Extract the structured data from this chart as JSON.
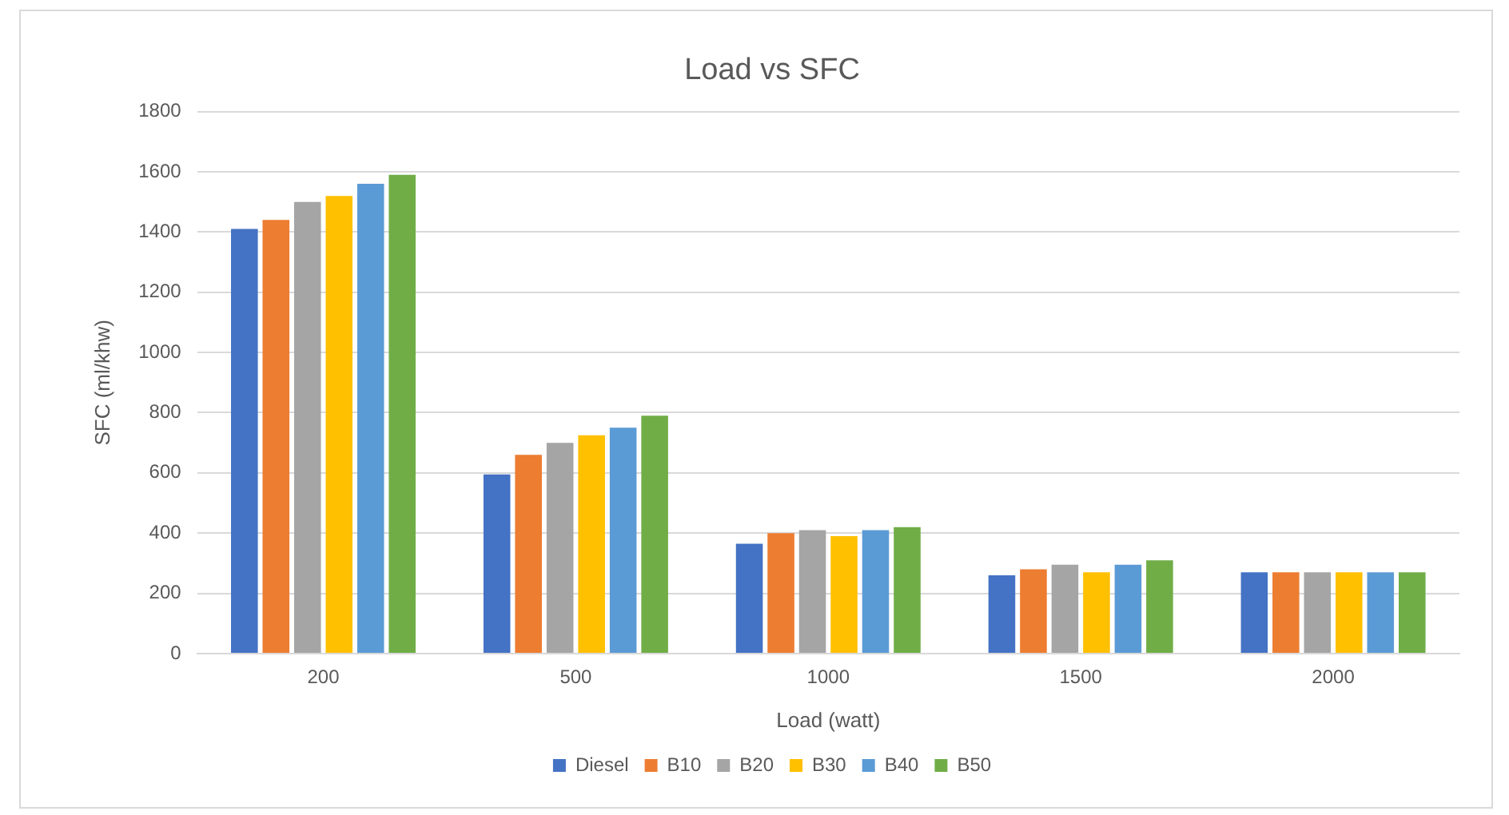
{
  "chart_data": {
    "type": "bar",
    "title": "Load vs SFC",
    "xlabel": "Load (watt)",
    "ylabel": "SFC (ml/khw)",
    "categories": [
      "200",
      "500",
      "1000",
      "1500",
      "2000"
    ],
    "series": [
      {
        "name": "Diesel",
        "color": "#4472c4",
        "values": [
          1410,
          595,
          365,
          260,
          270
        ]
      },
      {
        "name": "B10",
        "color": "#ed7d31",
        "values": [
          1440,
          660,
          400,
          280,
          270
        ]
      },
      {
        "name": "B20",
        "color": "#a5a5a5",
        "values": [
          1500,
          700,
          410,
          295,
          270
        ]
      },
      {
        "name": "B30",
        "color": "#ffc000",
        "values": [
          1520,
          725,
          390,
          270,
          270
        ]
      },
      {
        "name": "B40",
        "color": "#5b9bd5",
        "values": [
          1560,
          750,
          410,
          295,
          270
        ]
      },
      {
        "name": "B50",
        "color": "#70ad47",
        "values": [
          1590,
          790,
          420,
          310,
          270
        ]
      }
    ],
    "ylim": [
      0,
      1800
    ],
    "yticks": [
      0,
      200,
      400,
      600,
      800,
      1000,
      1200,
      1400,
      1600,
      1800
    ],
    "grid": "y",
    "legend": "bottom"
  }
}
